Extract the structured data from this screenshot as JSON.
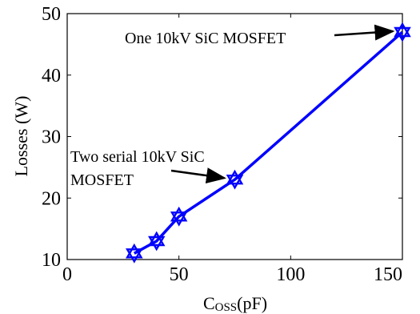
{
  "chart_data": {
    "type": "line",
    "title": "",
    "xlabel_main": "C",
    "xlabel_sub": "OSS",
    "xlabel_unit": "(pF)",
    "ylabel": "Losses (W)",
    "xlim": [
      0,
      150
    ],
    "ylim": [
      10,
      50
    ],
    "xticks": [
      0,
      50,
      100,
      150
    ],
    "yticks": [
      10,
      20,
      30,
      40,
      50
    ],
    "grid": false,
    "legend": "none",
    "series": [
      {
        "color": "#0000ff",
        "marker": "hexagram",
        "x": [
          30,
          40,
          50,
          75,
          150
        ],
        "y": [
          11,
          13,
          17,
          23,
          47
        ]
      }
    ],
    "annotations": [
      {
        "lines": [
          "One 10kV SiC MOSFET"
        ],
        "points_to": [
          150,
          47
        ]
      },
      {
        "lines": [
          "Two serial 10kV SiC",
          "MOSFET"
        ],
        "points_to": [
          75,
          23
        ]
      }
    ]
  }
}
